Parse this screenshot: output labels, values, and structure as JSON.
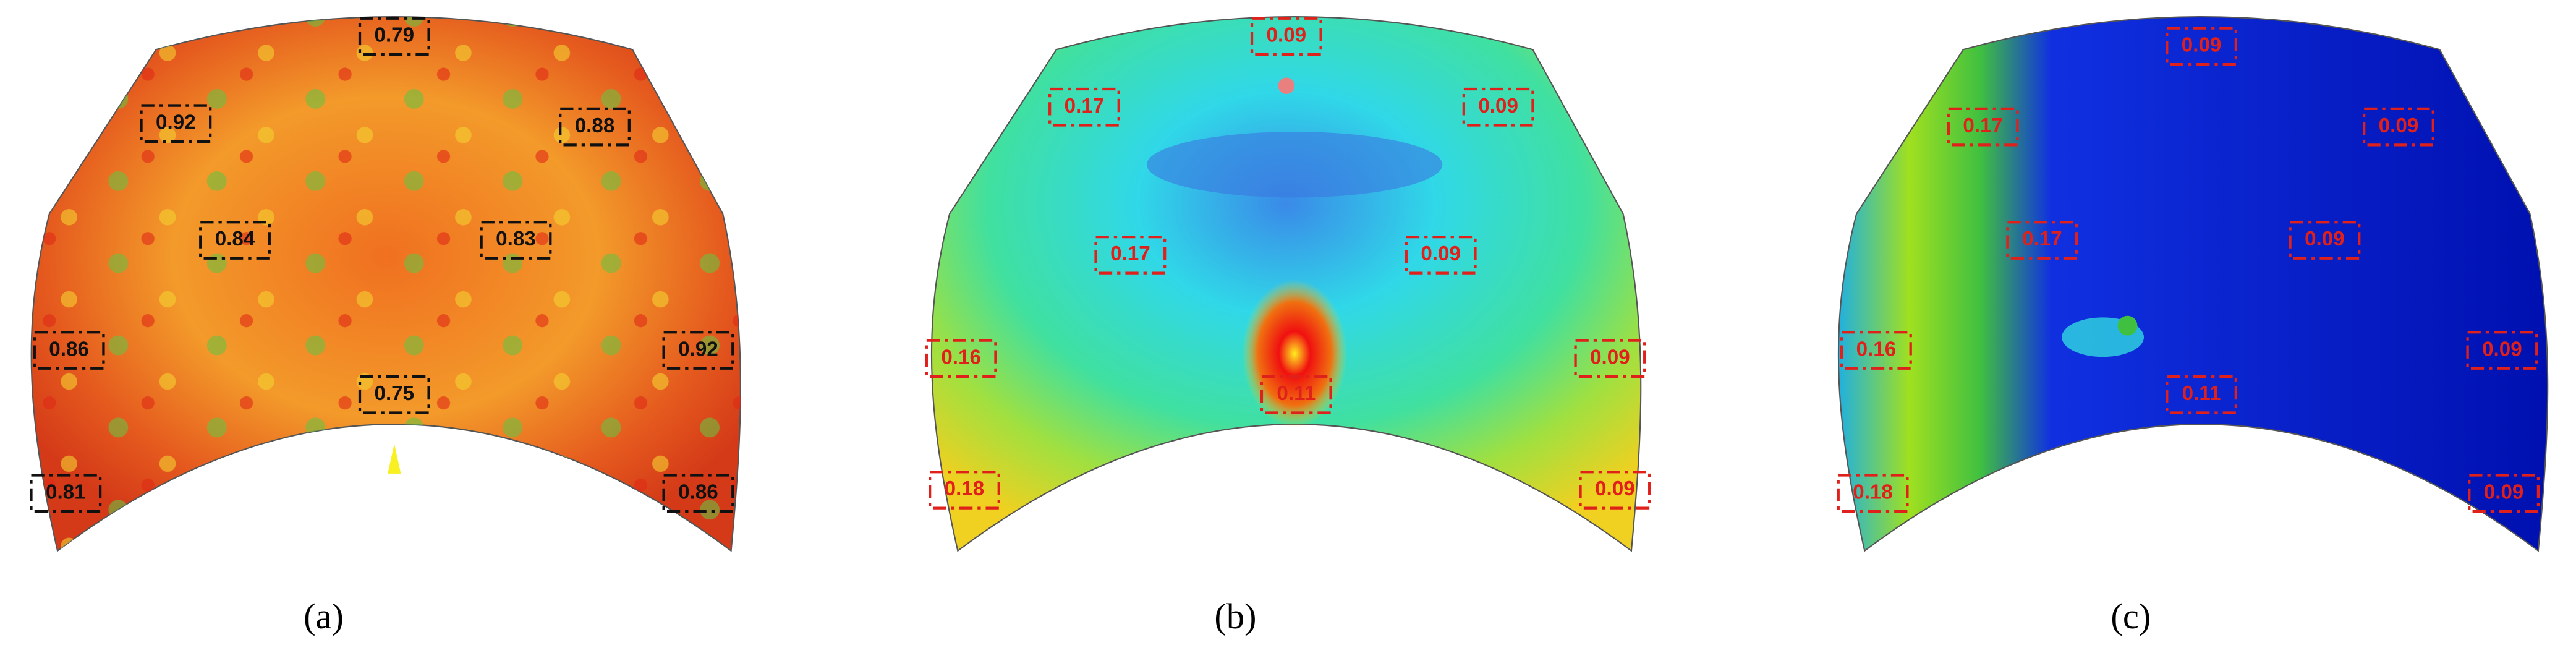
{
  "panels": [
    {
      "caption": "(a)",
      "labels": [
        "0.79",
        "0.92",
        "0.88",
        "0.84",
        "0.83",
        "0.86",
        "0.92",
        "0.75",
        "0.81",
        "0.86"
      ]
    },
    {
      "caption": "(b)",
      "labels": [
        "0.09",
        "0.17",
        "0.09",
        "0.17",
        "0.09",
        "0.16",
        "0.09",
        "0.11",
        "0.18",
        "0.09"
      ]
    },
    {
      "caption": "(c)",
      "labels": [
        "0.09",
        "0.17",
        "0.09",
        "0.17",
        "0.09",
        "0.16",
        "0.09",
        "0.11",
        "0.18",
        "0.09"
      ]
    }
  ]
}
